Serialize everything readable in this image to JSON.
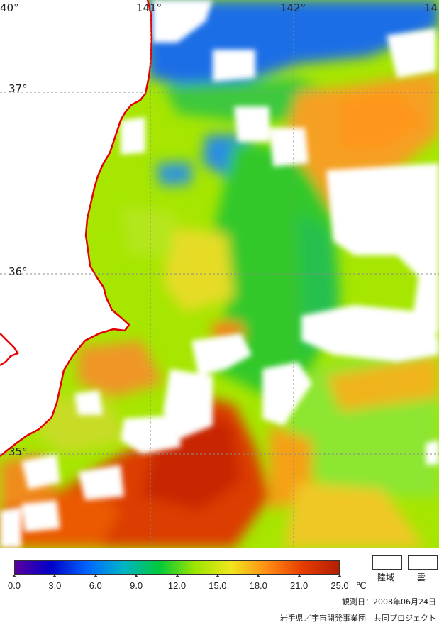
{
  "map": {
    "lon_labels": [
      "40°",
      "141°",
      "142°",
      "14"
    ],
    "lat_labels": [
      "37°",
      "36°",
      "35°"
    ]
  },
  "legend": {
    "ticks": [
      "0.0",
      "3.0",
      "6.0",
      "9.0",
      "12.0",
      "15.0",
      "18.0",
      "21.0",
      "25.0"
    ],
    "unit": "℃",
    "land_label": "陸域",
    "cloud_label": "雲",
    "colors": [
      "#5a00a0",
      "#0000c8",
      "#0064ff",
      "#00b4c8",
      "#00c83c",
      "#9be600",
      "#f0e61e",
      "#ff8c14",
      "#e63c00",
      "#b41e00"
    ]
  },
  "observation_date": "観測日：2008年06月24日",
  "credit": "岩手県／宇宙開発事業団　共同プロジェクト",
  "colors": {
    "coastline": "#e60000",
    "grid": "#8c8c8c",
    "land": "#ffffff",
    "cloud": "#ffffff"
  }
}
